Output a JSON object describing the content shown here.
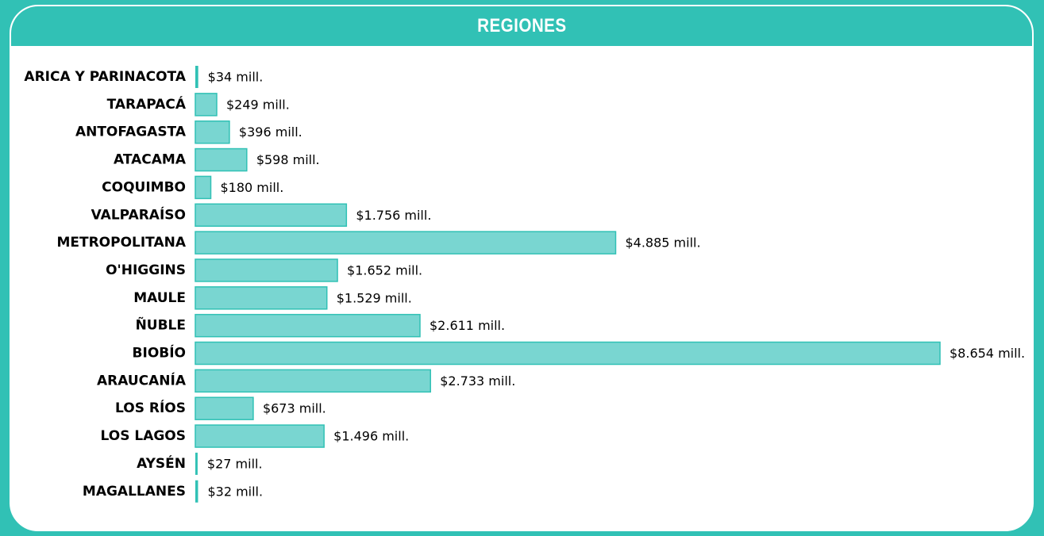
{
  "title": "REGIONES",
  "colors": {
    "background": "#31c1b5",
    "bar_fill": "#79d6d1",
    "bar_stroke": "#31c1b5",
    "card": "#ffffff"
  },
  "chart_data": {
    "type": "bar",
    "orientation": "horizontal",
    "title": "REGIONES",
    "categories": [
      "ARICA Y PARINACOTA",
      "TARAPACÁ",
      "ANTOFAGASTA",
      "ATACAMA",
      "COQUIMBO",
      "VALPARAÍSO",
      "METROPOLITANA",
      "O'HIGGINS",
      "MAULE",
      "ÑUBLE",
      "BIOBÍO",
      "ARAUCANÍA",
      "LOS RÍOS",
      "LOS LAGOS",
      "AYSÉN",
      "MAGALLANES"
    ],
    "values": [
      34,
      249,
      396,
      598,
      180,
      1756,
      4885,
      1652,
      1529,
      2611,
      8654,
      2733,
      673,
      1496,
      27,
      32
    ],
    "value_labels": [
      "$34 mill.",
      "$249 mill.",
      "$396 mill.",
      "$598 mill.",
      "$180 mill.",
      "$1.756 mill.",
      "$4.885 mill.",
      "$1.652 mill.",
      "$1.529 mill.",
      "$2.611 mill.",
      "$8.654 mill.",
      "$2.733 mill.",
      "$673 mill.",
      "$1.496 mill.",
      "$27 mill.",
      "$32 mill."
    ],
    "unit": "mill.",
    "xlim": [
      0,
      8654
    ],
    "grid": false,
    "legend": "none"
  }
}
